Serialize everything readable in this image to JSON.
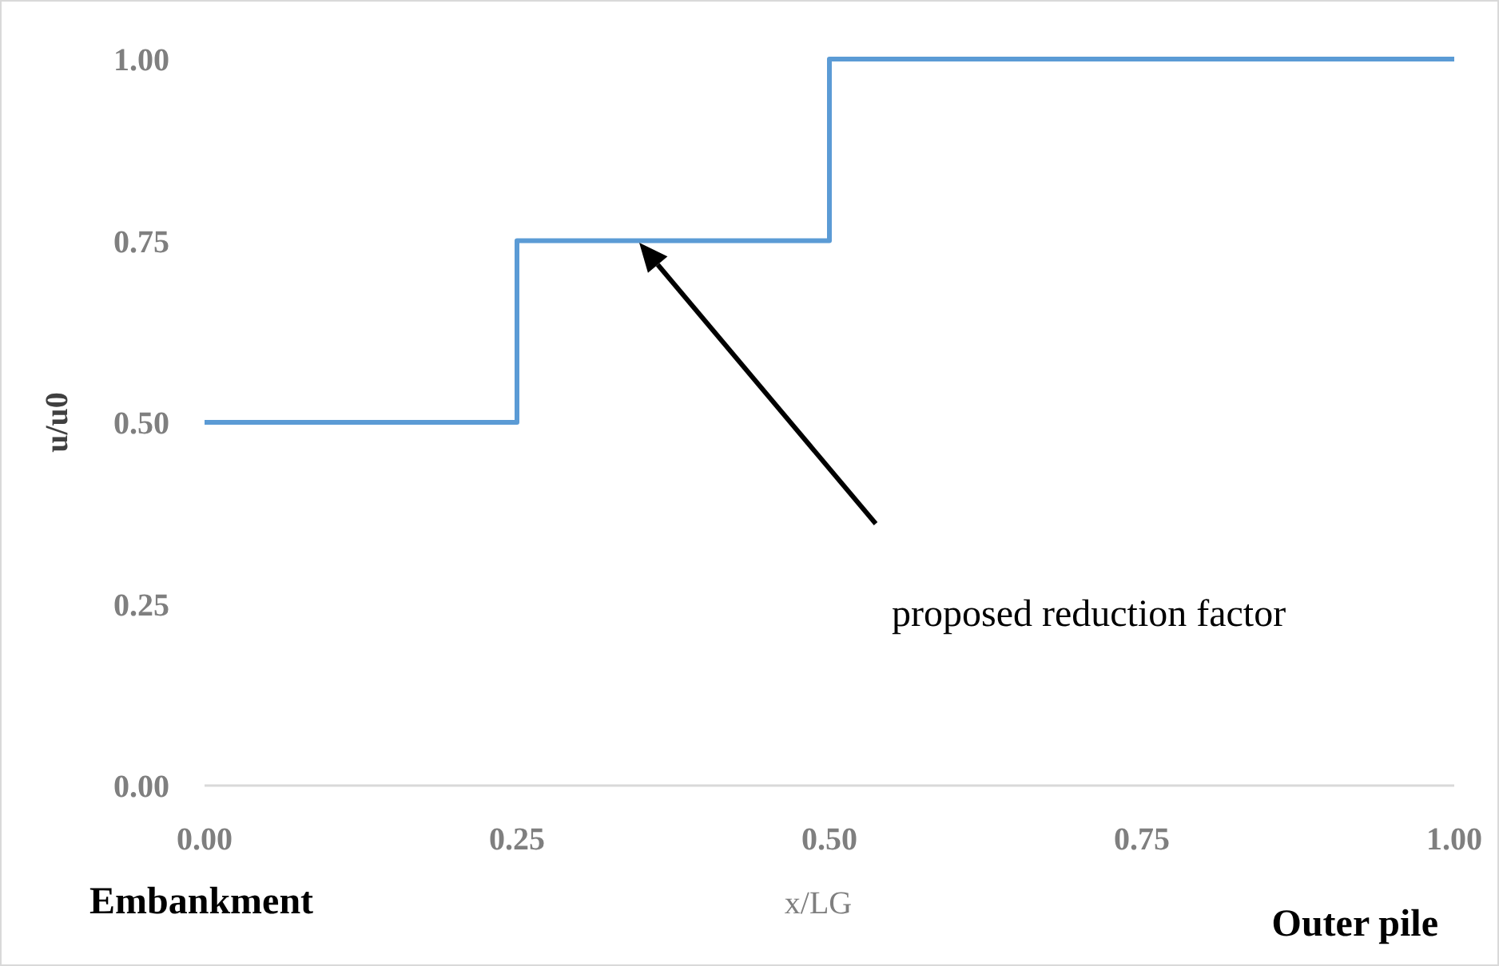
{
  "chart_data": {
    "type": "step",
    "xlabel": "x/LG",
    "ylabel": "u/u0",
    "x": [
      0,
      0.25,
      0.5,
      1
    ],
    "series": [
      {
        "color": "#5b9bd5",
        "values": [
          0.5,
          0.75,
          1,
          1
        ]
      }
    ],
    "xlim": [
      0,
      1
    ],
    "xticks": [
      {
        "value": 0,
        "label": "0.00"
      },
      {
        "value": 0.25,
        "label": "0.25"
      },
      {
        "value": 0.5,
        "label": "0.50"
      },
      {
        "value": 0.75,
        "label": "0.75"
      },
      {
        "value": 1,
        "label": "1.00"
      }
    ],
    "ylim": [
      0,
      1
    ],
    "yticks": [
      {
        "value": 0,
        "label": "0.00"
      },
      {
        "value": 0.25,
        "label": "0.25"
      },
      {
        "value": 0.5,
        "label": "0.50"
      },
      {
        "value": 0.75,
        "label": "0.75"
      },
      {
        "value": 1,
        "label": "1.00"
      }
    ],
    "grid": false,
    "marker": "none",
    "line_style": "solid",
    "annotations": [
      "proposed reduction factor",
      "Embankment",
      "Outer pile"
    ]
  }
}
